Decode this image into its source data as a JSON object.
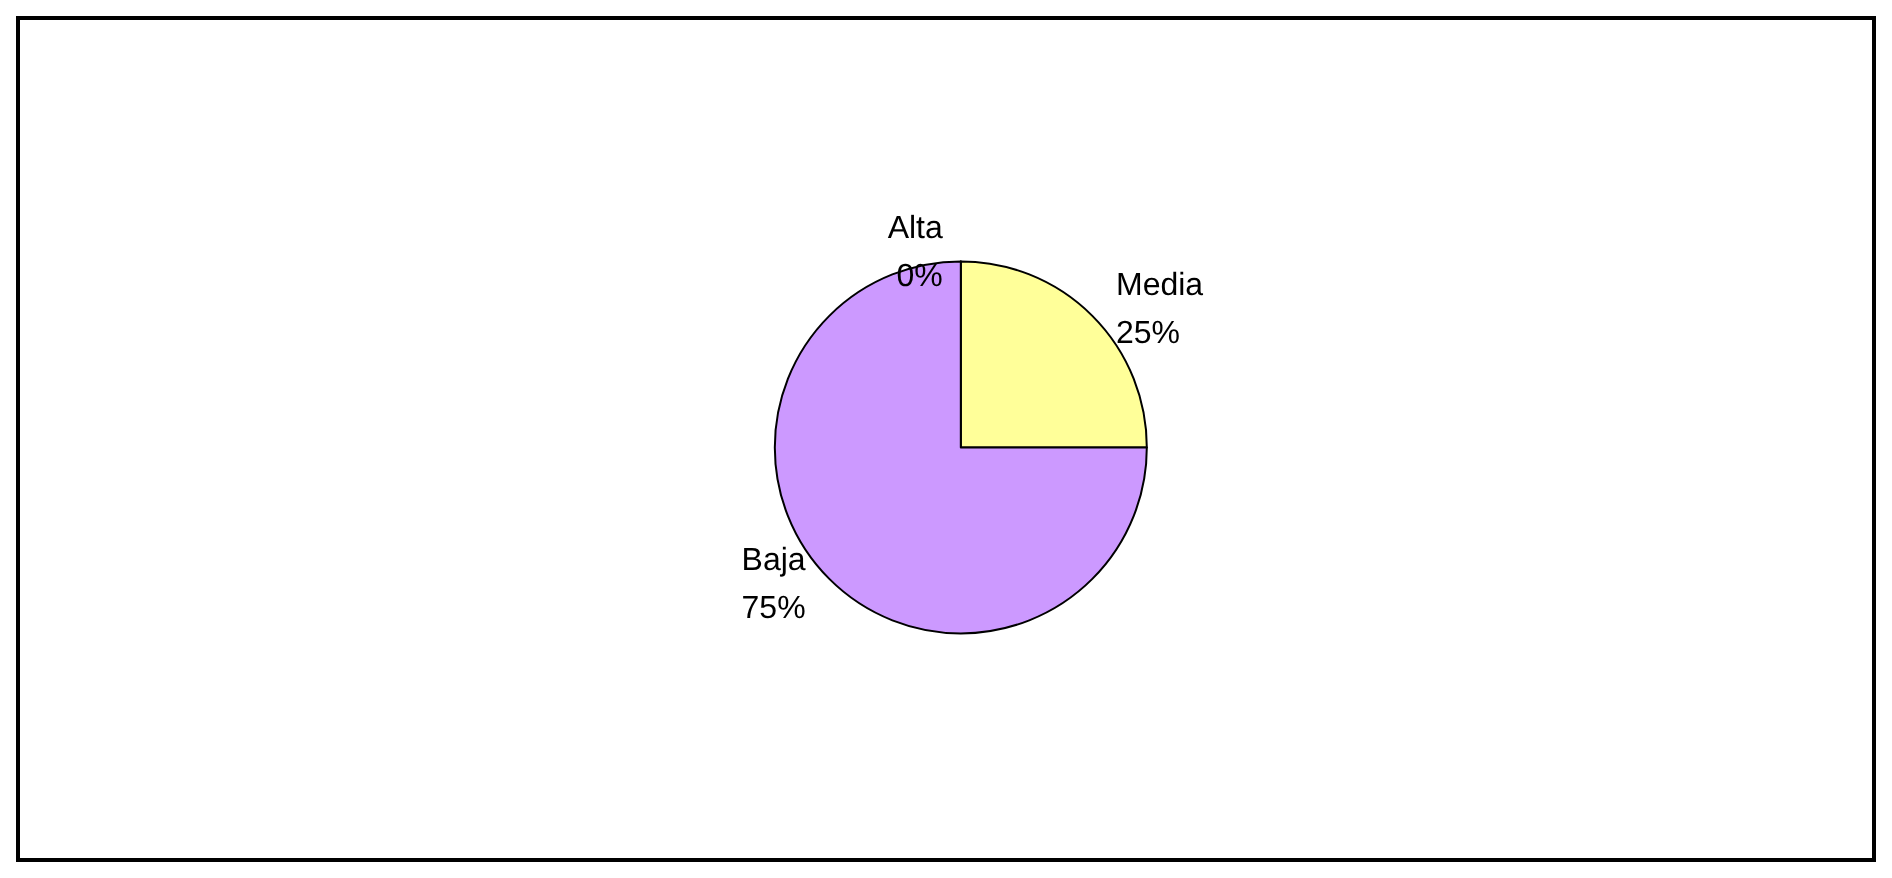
{
  "chart_data": {
    "type": "pie",
    "categories": [
      "Alta",
      "Media",
      "Baja"
    ],
    "values": [
      0,
      25,
      75
    ],
    "value_labels": [
      "0%",
      "25%",
      "75%"
    ],
    "colors": [
      "#9999ff",
      "#ffff99",
      "#cc99ff"
    ],
    "legend": false
  }
}
